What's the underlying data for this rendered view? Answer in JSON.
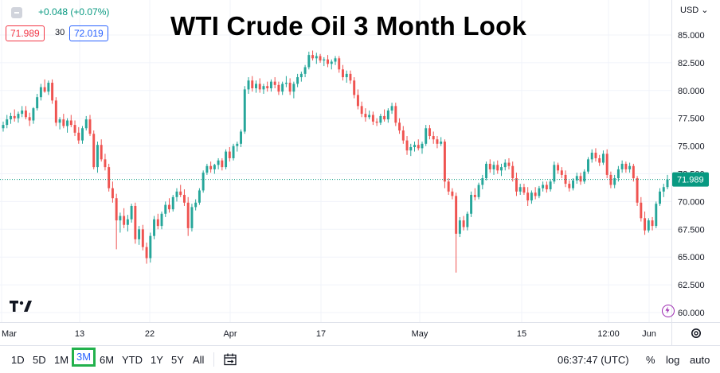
{
  "chart_data": {
    "type": "candlestick",
    "title": "WTI Crude Oil 3 Month Look",
    "currency": "USD",
    "ylim": [
      59.0,
      86.5
    ],
    "y_ticks": [
      "85.000",
      "82.500",
      "80.000",
      "77.500",
      "75.000",
      "72.500",
      "70.000",
      "67.500",
      "65.000",
      "62.500",
      "60.000"
    ],
    "x_ticks": [
      "Mar",
      "13",
      "22",
      "Apr",
      "17",
      "May",
      "15",
      "12:00",
      "Jun"
    ],
    "current_price": "71.989",
    "series": [
      {
        "values": [
          [
            76.6,
            77.2,
            76.3,
            76.9
          ],
          [
            76.9,
            77.8,
            76.6,
            77.4
          ],
          [
            77.4,
            78.0,
            77.0,
            77.7
          ],
          [
            77.7,
            78.3,
            77.2,
            77.5
          ],
          [
            77.5,
            78.1,
            77.1,
            77.9
          ],
          [
            77.9,
            78.6,
            77.6,
            78.2
          ],
          [
            78.2,
            78.6,
            77.4,
            77.6
          ],
          [
            77.6,
            78.0,
            76.8,
            77.3
          ],
          [
            77.3,
            78.5,
            77.0,
            78.4
          ],
          [
            78.4,
            79.7,
            78.2,
            79.4
          ],
          [
            79.4,
            80.6,
            79.1,
            80.3
          ],
          [
            80.3,
            81.0,
            79.8,
            79.9
          ],
          [
            79.9,
            80.9,
            79.6,
            80.7
          ],
          [
            80.7,
            81.0,
            78.8,
            79.1
          ],
          [
            79.1,
            79.4,
            76.8,
            77.1
          ],
          [
            77.1,
            77.6,
            76.5,
            77.4
          ],
          [
            77.4,
            77.9,
            76.6,
            76.8
          ],
          [
            76.8,
            77.5,
            76.2,
            77.3
          ],
          [
            77.3,
            77.8,
            76.7,
            76.9
          ],
          [
            76.9,
            77.3,
            75.9,
            76.2
          ],
          [
            76.2,
            76.7,
            75.2,
            75.5
          ],
          [
            75.5,
            76.8,
            75.2,
            76.6
          ],
          [
            76.6,
            77.7,
            76.4,
            77.4
          ],
          [
            77.4,
            77.8,
            75.9,
            76.1
          ],
          [
            76.1,
            76.4,
            72.9,
            73.1
          ],
          [
            73.1,
            75.4,
            72.6,
            75.1
          ],
          [
            75.1,
            75.6,
            73.6,
            73.8
          ],
          [
            73.8,
            74.3,
            72.8,
            73.1
          ],
          [
            73.1,
            73.4,
            70.9,
            71.2
          ],
          [
            71.2,
            71.8,
            69.9,
            70.3
          ],
          [
            70.3,
            70.7,
            65.7,
            68.3
          ],
          [
            68.3,
            69.0,
            67.2,
            68.7
          ],
          [
            68.7,
            69.4,
            67.6,
            67.9
          ],
          [
            67.9,
            68.8,
            67.3,
            68.4
          ],
          [
            68.4,
            69.8,
            68.1,
            69.6
          ],
          [
            69.6,
            69.9,
            66.2,
            66.6
          ],
          [
            66.6,
            67.8,
            66.1,
            67.5
          ],
          [
            67.5,
            67.9,
            65.6,
            65.9
          ],
          [
            65.9,
            66.3,
            64.4,
            64.9
          ],
          [
            64.9,
            67.2,
            64.5,
            66.9
          ],
          [
            66.9,
            68.7,
            66.6,
            68.4
          ],
          [
            68.4,
            68.9,
            67.5,
            67.8
          ],
          [
            67.8,
            69.1,
            67.5,
            68.9
          ],
          [
            68.9,
            70.0,
            68.6,
            69.7
          ],
          [
            69.7,
            70.3,
            69.0,
            69.3
          ],
          [
            69.3,
            70.6,
            69.1,
            70.4
          ],
          [
            70.4,
            71.2,
            70.0,
            70.9
          ],
          [
            70.9,
            71.5,
            70.4,
            70.6
          ],
          [
            70.6,
            71.1,
            69.6,
            69.9
          ],
          [
            69.9,
            70.4,
            66.9,
            67.6
          ],
          [
            67.6,
            69.8,
            67.3,
            69.5
          ],
          [
            69.5,
            70.2,
            69.2,
            69.9
          ],
          [
            69.9,
            71.2,
            69.7,
            71.0
          ],
          [
            71.0,
            72.8,
            70.8,
            72.6
          ],
          [
            72.6,
            73.4,
            72.4,
            73.2
          ],
          [
            73.2,
            73.6,
            72.6,
            72.9
          ],
          [
            72.9,
            73.4,
            72.5,
            73.3
          ],
          [
            73.3,
            73.9,
            72.9,
            73.7
          ],
          [
            73.7,
            73.9,
            72.8,
            73.1
          ],
          [
            73.1,
            74.7,
            72.9,
            74.5
          ],
          [
            74.5,
            74.9,
            73.6,
            73.9
          ],
          [
            73.9,
            75.2,
            73.7,
            75.0
          ],
          [
            75.0,
            75.4,
            74.5,
            75.2
          ],
          [
            75.2,
            76.5,
            74.9,
            76.3
          ],
          [
            76.3,
            80.4,
            76.1,
            80.1
          ],
          [
            80.1,
            81.2,
            79.7,
            80.9
          ],
          [
            80.9,
            81.3,
            79.9,
            80.2
          ],
          [
            80.2,
            80.9,
            79.8,
            80.6
          ],
          [
            80.6,
            81.1,
            79.8,
            80.1
          ],
          [
            80.1,
            80.6,
            79.7,
            80.4
          ],
          [
            80.4,
            80.8,
            79.9,
            80.2
          ],
          [
            80.2,
            81.0,
            79.9,
            80.8
          ],
          [
            80.8,
            81.2,
            80.2,
            80.5
          ],
          [
            80.5,
            80.8,
            79.6,
            79.9
          ],
          [
            79.9,
            80.8,
            79.6,
            80.6
          ],
          [
            80.6,
            81.3,
            80.3,
            80.7
          ],
          [
            80.7,
            81.1,
            79.6,
            79.9
          ],
          [
            79.9,
            80.8,
            79.3,
            80.6
          ],
          [
            80.6,
            81.5,
            80.3,
            81.2
          ],
          [
            81.2,
            81.7,
            80.8,
            81.5
          ],
          [
            81.5,
            82.3,
            81.2,
            82.1
          ],
          [
            82.1,
            83.5,
            81.9,
            83.2
          ],
          [
            83.2,
            83.6,
            82.7,
            82.9
          ],
          [
            82.9,
            83.4,
            82.4,
            83.1
          ],
          [
            83.1,
            83.3,
            82.5,
            82.7
          ],
          [
            82.7,
            83.0,
            82.2,
            82.8
          ],
          [
            82.8,
            83.2,
            82.1,
            82.4
          ],
          [
            82.4,
            82.8,
            81.9,
            82.6
          ],
          [
            82.6,
            83.1,
            82.3,
            82.9
          ],
          [
            82.9,
            83.1,
            81.6,
            81.9
          ],
          [
            81.9,
            82.3,
            80.9,
            81.2
          ],
          [
            81.2,
            81.8,
            80.7,
            81.5
          ],
          [
            81.5,
            81.8,
            80.6,
            80.9
          ],
          [
            80.9,
            81.2,
            79.3,
            79.6
          ],
          [
            79.6,
            80.1,
            78.3,
            78.6
          ],
          [
            78.6,
            79.0,
            77.6,
            77.9
          ],
          [
            77.9,
            78.4,
            77.2,
            77.6
          ],
          [
            77.6,
            78.2,
            77.4,
            77.8
          ],
          [
            77.8,
            78.1,
            76.9,
            77.2
          ],
          [
            77.2,
            77.5,
            76.8,
            77.1
          ],
          [
            77.1,
            77.9,
            76.9,
            77.7
          ],
          [
            77.7,
            78.3,
            77.2,
            77.4
          ],
          [
            77.4,
            78.4,
            77.1,
            78.2
          ],
          [
            78.2,
            78.9,
            77.9,
            78.6
          ],
          [
            78.6,
            78.9,
            76.8,
            77.1
          ],
          [
            77.1,
            77.5,
            76.1,
            76.4
          ],
          [
            76.4,
            76.8,
            75.2,
            75.5
          ],
          [
            75.5,
            75.9,
            74.2,
            74.6
          ],
          [
            74.6,
            75.2,
            74.1,
            74.9
          ],
          [
            74.9,
            75.4,
            74.5,
            75.1
          ],
          [
            75.1,
            75.6,
            74.6,
            74.8
          ],
          [
            74.8,
            75.4,
            74.3,
            75.2
          ],
          [
            75.2,
            76.9,
            75.0,
            76.6
          ],
          [
            76.6,
            76.9,
            75.6,
            75.9
          ],
          [
            75.9,
            76.3,
            75.2,
            75.6
          ],
          [
            75.6,
            75.9,
            74.8,
            75.2
          ],
          [
            75.2,
            75.8,
            75.0,
            75.4
          ],
          [
            75.4,
            75.6,
            71.2,
            71.8
          ],
          [
            71.8,
            72.1,
            70.6,
            70.9
          ],
          [
            70.9,
            71.2,
            70.2,
            70.5
          ],
          [
            70.5,
            70.8,
            63.6,
            67.1
          ],
          [
            67.1,
            68.6,
            66.8,
            68.3
          ],
          [
            68.3,
            68.7,
            67.4,
            67.7
          ],
          [
            67.7,
            69.1,
            67.4,
            68.9
          ],
          [
            68.9,
            70.9,
            68.6,
            70.6
          ],
          [
            70.6,
            71.2,
            70.1,
            70.4
          ],
          [
            70.4,
            71.7,
            70.2,
            71.5
          ],
          [
            71.5,
            72.4,
            71.1,
            72.1
          ],
          [
            72.1,
            73.6,
            71.9,
            73.4
          ],
          [
            73.4,
            73.8,
            72.6,
            72.9
          ],
          [
            72.9,
            73.6,
            72.4,
            73.3
          ],
          [
            73.3,
            73.7,
            72.5,
            72.8
          ],
          [
            72.8,
            73.4,
            72.3,
            73.1
          ],
          [
            73.1,
            73.8,
            72.8,
            73.5
          ],
          [
            73.5,
            73.9,
            72.9,
            73.2
          ],
          [
            73.2,
            73.6,
            71.8,
            72.1
          ],
          [
            72.1,
            72.6,
            70.5,
            70.9
          ],
          [
            70.9,
            71.6,
            70.6,
            71.3
          ],
          [
            71.3,
            71.6,
            70.6,
            70.8
          ],
          [
            70.8,
            71.3,
            69.6,
            70.1
          ],
          [
            70.1,
            71.0,
            69.8,
            70.8
          ],
          [
            70.8,
            71.3,
            70.2,
            70.5
          ],
          [
            70.5,
            71.4,
            70.3,
            71.2
          ],
          [
            71.2,
            71.8,
            70.9,
            71.5
          ],
          [
            71.5,
            71.8,
            70.8,
            71.1
          ],
          [
            71.1,
            72.0,
            70.9,
            71.8
          ],
          [
            71.8,
            73.6,
            71.6,
            73.3
          ],
          [
            73.3,
            73.5,
            72.5,
            72.8
          ],
          [
            72.8,
            73.1,
            72.1,
            72.4
          ],
          [
            72.4,
            72.8,
            71.3,
            71.6
          ],
          [
            71.6,
            71.9,
            70.9,
            71.2
          ],
          [
            71.2,
            72.1,
            71.0,
            71.9
          ],
          [
            71.9,
            72.6,
            71.6,
            72.3
          ],
          [
            72.3,
            72.6,
            71.5,
            71.8
          ],
          [
            71.8,
            72.9,
            71.6,
            72.7
          ],
          [
            72.7,
            74.0,
            72.5,
            73.8
          ],
          [
            73.8,
            74.7,
            73.5,
            74.4
          ],
          [
            74.4,
            74.8,
            73.6,
            73.9
          ],
          [
            73.9,
            74.2,
            73.2,
            73.5
          ],
          [
            73.5,
            74.6,
            73.3,
            74.3
          ],
          [
            74.3,
            74.7,
            72.1,
            72.4
          ],
          [
            72.4,
            72.7,
            71.2,
            71.5
          ],
          [
            71.5,
            72.4,
            71.2,
            72.1
          ],
          [
            72.1,
            73.2,
            71.8,
            72.9
          ],
          [
            72.9,
            73.7,
            72.6,
            73.4
          ],
          [
            73.4,
            73.6,
            72.6,
            72.9
          ],
          [
            72.9,
            73.5,
            72.6,
            73.2
          ],
          [
            73.2,
            73.4,
            71.8,
            72.1
          ],
          [
            72.1,
            72.3,
            69.6,
            69.9
          ],
          [
            69.9,
            70.4,
            68.2,
            68.5
          ],
          [
            68.5,
            69.1,
            67.0,
            67.4
          ],
          [
            67.4,
            68.5,
            67.2,
            68.3
          ],
          [
            68.3,
            68.6,
            67.4,
            67.8
          ],
          [
            67.8,
            70.0,
            67.6,
            69.8
          ],
          [
            69.8,
            71.2,
            69.6,
            70.9
          ],
          [
            70.9,
            71.6,
            70.4,
            71.3
          ],
          [
            71.3,
            72.4,
            71.1,
            71.99
          ]
        ]
      }
    ]
  },
  "header": {
    "change": "+0.048 (+0.07%)",
    "bid": "71.989",
    "spread": "30",
    "ask": "72.019",
    "currency_label": "USD ⌄"
  },
  "bottom_bar": {
    "ranges": [
      "1D",
      "5D",
      "1M",
      "3M",
      "6M",
      "YTD",
      "1Y",
      "5Y",
      "All"
    ],
    "active_range": "3M",
    "time": "06:37:47 (UTC)",
    "percent": "%",
    "log": "log",
    "auto": "auto"
  },
  "colors": {
    "up": "#26a69a",
    "down": "#ef5350",
    "grid": "#f0f3fa",
    "axis_text": "#131722",
    "price_badge": "#089981",
    "highlight": "#22b14c"
  },
  "icons": {
    "logo": "tradingview-logo-icon",
    "settings": "gear-icon",
    "calendar": "calendar-range-icon",
    "collapse": "minus-icon",
    "lightning": "lightning-icon"
  }
}
